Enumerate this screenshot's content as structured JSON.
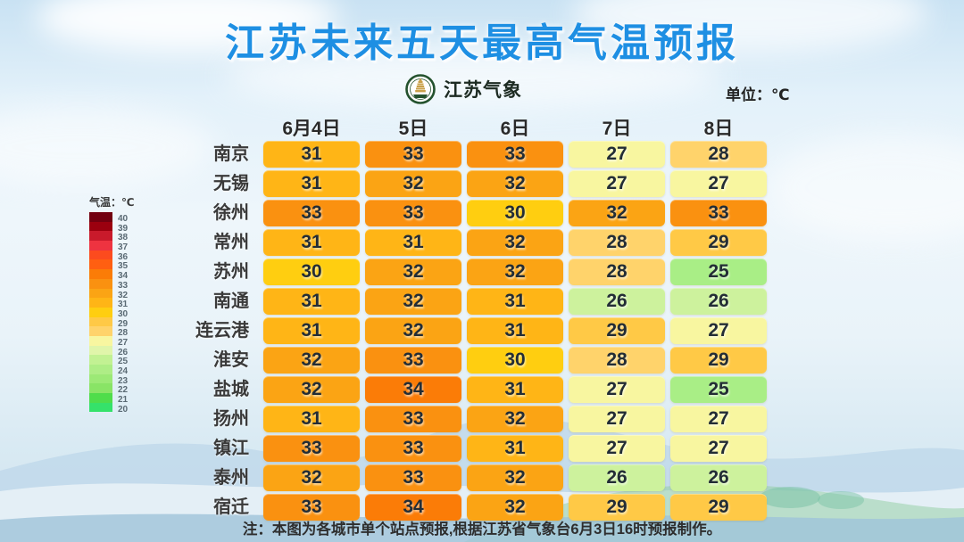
{
  "title": "江苏未来五天最高气温预报",
  "logo": {
    "text": "江苏气象"
  },
  "unit_label": "单位：℃",
  "legend": {
    "title": "气温：℃",
    "entries": [
      {
        "t": "40",
        "color": "#730010"
      },
      {
        "t": "39",
        "color": "#9b000f"
      },
      {
        "t": "38",
        "color": "#c91a2b"
      },
      {
        "t": "37",
        "color": "#ee3340"
      },
      {
        "t": "36",
        "color": "#fc4b1e"
      },
      {
        "t": "35",
        "color": "#ff5f11"
      },
      {
        "t": "34",
        "color": "#fb7c07"
      },
      {
        "t": "33",
        "color": "#fa9110"
      },
      {
        "t": "32",
        "color": "#fba414"
      },
      {
        "t": "31",
        "color": "#ffb516"
      },
      {
        "t": "30",
        "color": "#ffce10"
      },
      {
        "t": "29",
        "color": "#ffc946"
      },
      {
        "t": "28",
        "color": "#ffd36b"
      },
      {
        "t": "27",
        "color": "#f8f6a0"
      },
      {
        "t": "26",
        "color": "#e0f5aa"
      },
      {
        "t": "25",
        "color": "#c2f193"
      },
      {
        "t": "24",
        "color": "#aeed86"
      },
      {
        "t": "23",
        "color": "#9ce976"
      },
      {
        "t": "22",
        "color": "#89e466"
      },
      {
        "t": "21",
        "color": "#4fdd4b"
      },
      {
        "t": "20",
        "color": "#35e26a"
      }
    ]
  },
  "temp_colors": {
    "25": "#a9ee86",
    "26": "#cdf29d",
    "27": "#f8f6a0",
    "28": "#ffd36b",
    "29": "#ffc946",
    "30": "#ffce10",
    "31": "#ffb516",
    "32": "#fba414",
    "33": "#fa9110",
    "34": "#fb7c07"
  },
  "chart_data": {
    "type": "heatmap",
    "title": "江苏未来五天最高气温预报",
    "unit": "℃",
    "columns": [
      "6月4日",
      "5日",
      "6日",
      "7日",
      "8日"
    ],
    "rows": [
      "南京",
      "无锡",
      "徐州",
      "常州",
      "苏州",
      "南通",
      "连云港",
      "淮安",
      "盐城",
      "扬州",
      "镇江",
      "泰州",
      "宿迁"
    ],
    "values": [
      [
        31,
        33,
        33,
        27,
        28
      ],
      [
        31,
        32,
        32,
        27,
        27
      ],
      [
        33,
        33,
        30,
        32,
        33
      ],
      [
        31,
        31,
        32,
        28,
        29
      ],
      [
        30,
        32,
        32,
        28,
        25
      ],
      [
        31,
        32,
        31,
        26,
        26
      ],
      [
        31,
        32,
        31,
        29,
        27
      ],
      [
        32,
        33,
        30,
        28,
        29
      ],
      [
        32,
        34,
        31,
        27,
        25
      ],
      [
        31,
        33,
        32,
        27,
        27
      ],
      [
        33,
        33,
        31,
        27,
        27
      ],
      [
        32,
        33,
        32,
        26,
        26
      ],
      [
        33,
        34,
        32,
        29,
        29
      ]
    ],
    "colorbar_range": [
      20,
      40
    ],
    "legend_position": "left"
  },
  "footer_note": "注：本图为各城市单个站点预报,根据江苏省气象台6月3日16时预报制作。"
}
